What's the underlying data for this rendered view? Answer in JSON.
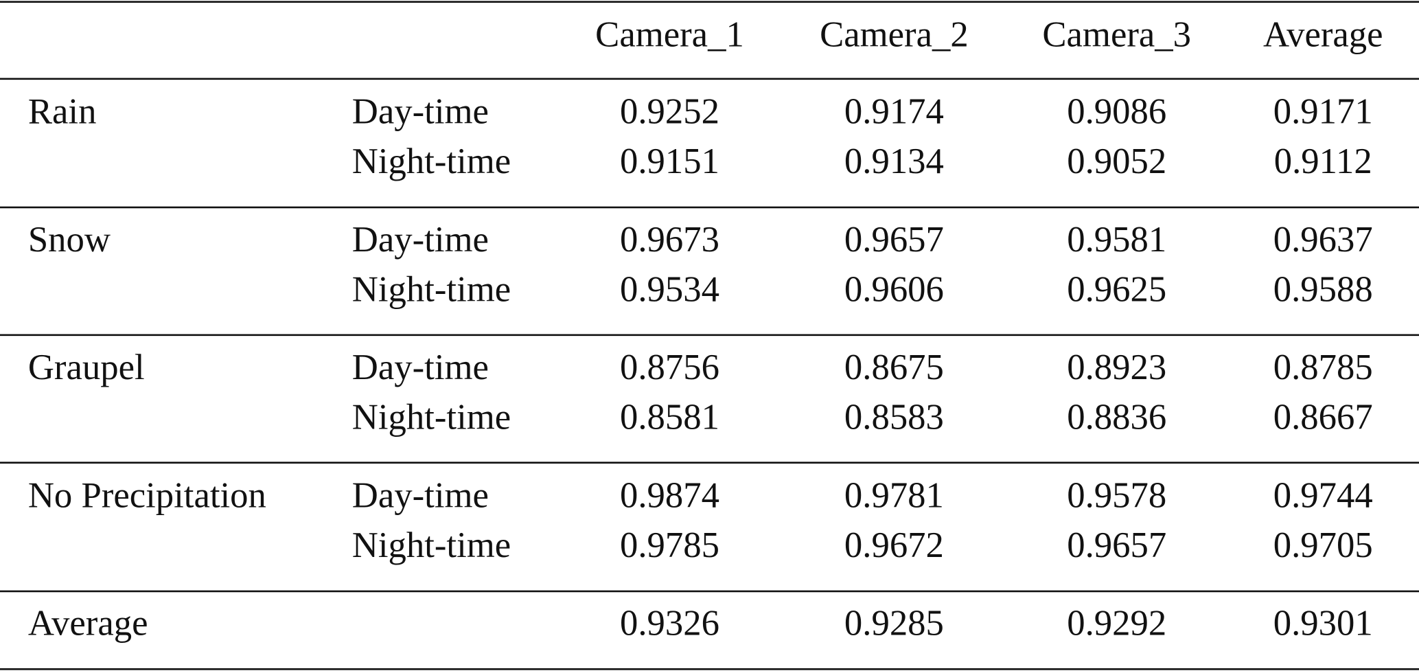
{
  "table": {
    "header": [
      "Camera_1",
      "Camera_2",
      "Camera_3",
      "Average"
    ],
    "groups": [
      {
        "name": "Rain",
        "rows": [
          {
            "condition": "Day-time",
            "values": [
              0.9252,
              0.9174,
              0.9086,
              0.9171
            ]
          },
          {
            "condition": "Night-time",
            "values": [
              0.9151,
              0.9134,
              0.9052,
              0.9112
            ]
          }
        ]
      },
      {
        "name": "Snow",
        "rows": [
          {
            "condition": "Day-time",
            "values": [
              0.9673,
              0.9657,
              0.9581,
              0.9637
            ]
          },
          {
            "condition": "Night-time",
            "values": [
              0.9534,
              0.9606,
              0.9625,
              0.9588
            ]
          }
        ]
      },
      {
        "name": "Graupel",
        "rows": [
          {
            "condition": "Day-time",
            "values": [
              0.8756,
              0.8675,
              0.8923,
              0.8785
            ]
          },
          {
            "condition": "Night-time",
            "values": [
              0.8581,
              0.8583,
              0.8836,
              0.8667
            ]
          }
        ]
      },
      {
        "name": "No Precipitation",
        "rows": [
          {
            "condition": "Day-time",
            "values": [
              0.9874,
              0.9781,
              0.9578,
              0.9744
            ]
          },
          {
            "condition": "Night-time",
            "values": [
              0.9785,
              0.9672,
              0.9657,
              0.9705
            ]
          }
        ]
      }
    ],
    "average": {
      "name": "Average",
      "values": [
        0.9326,
        0.9285,
        0.9292,
        0.9301
      ]
    }
  }
}
